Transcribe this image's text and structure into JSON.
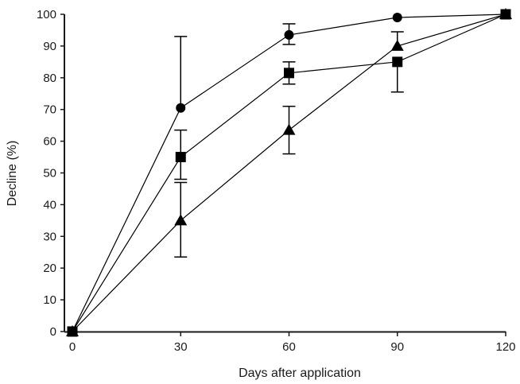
{
  "chart_data": {
    "type": "line",
    "title": "",
    "xlabel": "Days after application",
    "ylabel": "Decline (%)",
    "x": [
      0,
      30,
      60,
      90,
      120
    ],
    "xticks": [
      0,
      30,
      60,
      90,
      120
    ],
    "yticks": [
      0,
      10,
      20,
      30,
      40,
      50,
      60,
      70,
      80,
      90,
      100
    ],
    "xlim": [
      0,
      120
    ],
    "ylim": [
      0,
      100
    ],
    "grid": false,
    "legend": null,
    "series": [
      {
        "name": "circle",
        "marker": "circle",
        "values": [
          0,
          70.5,
          93.5,
          99,
          100
        ],
        "error_low": [
          null,
          null,
          90.5,
          null,
          null
        ],
        "error_high": [
          null,
          93,
          97,
          null,
          null
        ]
      },
      {
        "name": "square",
        "marker": "square",
        "values": [
          0,
          55,
          81.5,
          85,
          100
        ],
        "error_low": [
          null,
          48,
          78,
          75.5,
          null
        ],
        "error_high": [
          null,
          63.5,
          85,
          null,
          null
        ]
      },
      {
        "name": "triangle",
        "marker": "triangle",
        "values": [
          0,
          35,
          63.5,
          90,
          100
        ],
        "error_low": [
          null,
          23.5,
          56,
          null,
          null
        ],
        "error_high": [
          null,
          47,
          71,
          94.5,
          null
        ]
      }
    ]
  },
  "colors": {
    "line": "#000000",
    "axis": "#1a1a1a",
    "background": "#ffffff"
  }
}
